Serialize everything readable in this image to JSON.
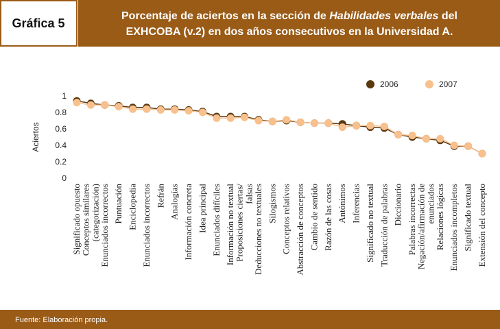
{
  "header": {
    "label": "Gráfica 5"
  },
  "chart_data": {
    "type": "line",
    "title": [
      [
        "Porcentaje de aciertos en la sección de ",
        "Habilidades verbales",
        " del"
      ],
      [
        "EXHCOBA (v.2) en dos años consecutivos en la Universidad A."
      ]
    ],
    "y_label": "Aciertos",
    "categories": [
      [
        "Significado opuesto"
      ],
      [
        "Conceptos similares",
        "(categorización)"
      ],
      [
        "Enunciados incorrectos"
      ],
      [
        "Puntuación"
      ],
      [
        "Enciclopedia"
      ],
      [
        "Enunciados incorrectos"
      ],
      [
        "Refrán"
      ],
      [
        "Analogías"
      ],
      [
        "Información concreta"
      ],
      [
        "Idea principal"
      ],
      [
        "Enunciados difíciles"
      ],
      [
        "Información no textual"
      ],
      [
        "Proposiciones ciertas/",
        "falsas"
      ],
      [
        "Deducciones no textuales"
      ],
      [
        "Silogismos"
      ],
      [
        "Conceptos relativos"
      ],
      [
        "Abstracción de conceptos"
      ],
      [
        "Cambio de sentido"
      ],
      [
        "Razón de las cosas"
      ],
      [
        "Antónimos"
      ],
      [
        "Inferencias"
      ],
      [
        "Significado no textual"
      ],
      [
        "Traducción de palabras"
      ],
      [
        "Diccionario"
      ],
      [
        "Palabras incorrectas"
      ],
      [
        "Negación/afirmación de",
        "enunciados"
      ],
      [
        "Relaciones lógicas"
      ],
      [
        "Enunciados incompletos"
      ],
      [
        "Significado textual"
      ],
      [
        "Extensión del concepto"
      ]
    ],
    "series": [
      {
        "name": "2006",
        "color": "#5a3810",
        "values": [
          0.94,
          0.91,
          0.89,
          0.88,
          0.86,
          0.86,
          0.84,
          0.84,
          0.83,
          0.81,
          0.75,
          0.75,
          0.75,
          0.71,
          0.69,
          0.7,
          0.68,
          0.67,
          0.67,
          0.66,
          0.64,
          0.62,
          0.61,
          0.53,
          0.5,
          0.48,
          0.46,
          0.39,
          0.39,
          0.3
        ]
      },
      {
        "name": "2007",
        "color": "#f8c08c",
        "values": [
          0.92,
          0.89,
          0.89,
          0.87,
          0.84,
          0.84,
          0.83,
          0.83,
          0.82,
          0.8,
          0.73,
          0.73,
          0.74,
          0.7,
          0.69,
          0.71,
          0.68,
          0.67,
          0.67,
          0.62,
          0.64,
          0.64,
          0.63,
          0.53,
          0.52,
          0.48,
          0.48,
          0.4,
          0.39,
          0.3
        ]
      }
    ],
    "ylim": [
      0,
      1
    ],
    "yticks": [
      0,
      0.2,
      0.4,
      0.6,
      0.8,
      1
    ],
    "legend": "top-right"
  },
  "footer": {
    "source": "Fuente: Elaboración propia."
  }
}
